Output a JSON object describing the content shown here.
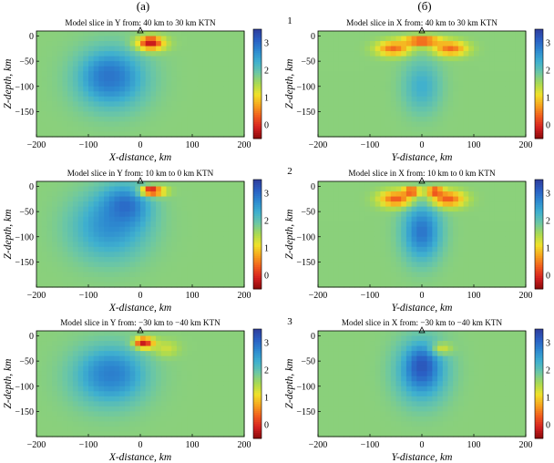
{
  "column_labels": [
    "(a)",
    "(б)"
  ],
  "row_labels": [
    "1",
    "2",
    "3"
  ],
  "colorbar": {
    "ticks": [
      "3",
      "2",
      "1",
      "0"
    ],
    "colors": [
      "#8a0a0a",
      "#d42020",
      "#f05a1e",
      "#f7a21e",
      "#f0e22a",
      "#a9da52",
      "#6cc7a4",
      "#3fb0cf",
      "#2d8ad0",
      "#2a5fc4",
      "#2f3c9a"
    ]
  },
  "chart_data": [
    {
      "type": "heatmap",
      "title": "Model slice in Y from: 40 km to 30 km KTN",
      "xlabel": "X-distance, km",
      "ylabel": "Z-depth, km",
      "xlim": [
        -200,
        200
      ],
      "ylim": [
        -200,
        10
      ],
      "x_ticks": [
        "−200",
        "−100",
        "0",
        "100",
        "200"
      ],
      "y_ticks": [
        "0",
        "−50",
        "−100",
        "−150"
      ],
      "value_range": [
        -0.5,
        3.5
      ],
      "background_value": 1.7,
      "anomalies": [
        {
          "x": -55,
          "z": -85,
          "rx": 85,
          "rz": 75,
          "value": 2.6
        },
        {
          "x": -60,
          "z": -80,
          "rx": 50,
          "rz": 45,
          "value": 2.9
        },
        {
          "x": 20,
          "z": -15,
          "rx": 35,
          "rz": 18,
          "value": 0.3
        },
        {
          "x": 20,
          "z": -12,
          "rx": 18,
          "rz": 10,
          "value": -0.3
        }
      ]
    },
    {
      "type": "heatmap",
      "title": "Model slice in X from: 40 km to 30 km KTN",
      "xlabel": "Y-distance, km",
      "ylabel": "Z-depth, km",
      "xlim": [
        -200,
        200
      ],
      "ylim": [
        -200,
        10
      ],
      "x_ticks": [
        "−200",
        "−100",
        "0",
        "100",
        "200"
      ],
      "y_ticks": [
        "0",
        "−50",
        "−100",
        "−150"
      ],
      "value_range": [
        -0.5,
        3.5
      ],
      "background_value": 1.7,
      "anomalies": [
        {
          "x": 0,
          "z": -100,
          "rx": 45,
          "rz": 65,
          "value": 2.3
        },
        {
          "x": -55,
          "z": -25,
          "rx": 40,
          "rz": 18,
          "value": 0.4
        },
        {
          "x": 55,
          "z": -25,
          "rx": 40,
          "rz": 18,
          "value": 0.4
        },
        {
          "x": 0,
          "z": -10,
          "rx": 45,
          "rz": 12,
          "value": 0.0
        }
      ]
    },
    {
      "type": "heatmap",
      "title": "Model slice in Y from: 10 km to 0 km KTN",
      "xlabel": "X-distance, km",
      "ylabel": "Z-depth, km",
      "xlim": [
        -200,
        200
      ],
      "ylim": [
        -200,
        10
      ],
      "x_ticks": [
        "−200",
        "−100",
        "0",
        "100",
        "200"
      ],
      "y_ticks": [
        "0",
        "−50",
        "−100",
        "−150"
      ],
      "value_range": [
        -0.5,
        3.5
      ],
      "background_value": 1.7,
      "anomalies": [
        {
          "x": -60,
          "z": -80,
          "rx": 90,
          "rz": 80,
          "value": 2.6
        },
        {
          "x": -30,
          "z": -40,
          "rx": 55,
          "rz": 50,
          "value": 3.0
        },
        {
          "x": 25,
          "z": -10,
          "rx": 30,
          "rz": 12,
          "value": 0.2
        },
        {
          "x": 20,
          "z": -8,
          "rx": 15,
          "rz": 7,
          "value": -0.3
        }
      ]
    },
    {
      "type": "heatmap",
      "title": "Model slice in X from: 10 km to 0 km KTN",
      "xlabel": "Y-distance, km",
      "ylabel": "Z-depth, km",
      "xlim": [
        -200,
        200
      ],
      "ylim": [
        -200,
        10
      ],
      "x_ticks": [
        "−200",
        "−100",
        "0",
        "100",
        "200"
      ],
      "y_ticks": [
        "0",
        "−50",
        "−100",
        "−150"
      ],
      "value_range": [
        -0.5,
        3.5
      ],
      "background_value": 1.7,
      "anomalies": [
        {
          "x": 0,
          "z": -90,
          "rx": 45,
          "rz": 70,
          "value": 2.9
        },
        {
          "x": -50,
          "z": -25,
          "rx": 40,
          "rz": 20,
          "value": 0.3
        },
        {
          "x": 50,
          "z": -25,
          "rx": 40,
          "rz": 20,
          "value": 0.3
        },
        {
          "x": -20,
          "z": -10,
          "rx": 20,
          "rz": 10,
          "value": -0.2
        },
        {
          "x": 25,
          "z": -10,
          "rx": 20,
          "rz": 10,
          "value": -0.2
        }
      ]
    },
    {
      "type": "heatmap",
      "title": "Model slice in Y from: −30 km to −40 km KTN",
      "xlabel": "X-distance, km",
      "ylabel": "Z-depth, km",
      "xlim": [
        -200,
        200
      ],
      "ylim": [
        -200,
        10
      ],
      "x_ticks": [
        "−200",
        "−100",
        "0",
        "100",
        "200"
      ],
      "y_ticks": [
        "0",
        "−50",
        "−100",
        "−150"
      ],
      "value_range": [
        -0.5,
        3.5
      ],
      "background_value": 1.7,
      "anomalies": [
        {
          "x": -60,
          "z": -80,
          "rx": 90,
          "rz": 75,
          "value": 2.5
        },
        {
          "x": -55,
          "z": -75,
          "rx": 55,
          "rz": 45,
          "value": 2.8
        },
        {
          "x": 10,
          "z": -15,
          "rx": 25,
          "rz": 14,
          "value": 0.2
        },
        {
          "x": 5,
          "z": -12,
          "rx": 15,
          "rz": 8,
          "value": -0.3
        },
        {
          "x": 50,
          "z": -25,
          "rx": 30,
          "rz": 20,
          "value": 1.3
        }
      ]
    },
    {
      "type": "heatmap",
      "title": "Model slice in X from: −30 km to −40 km KTN",
      "xlabel": "Y-distance, km",
      "ylabel": "Z-depth, km",
      "xlim": [
        -200,
        200
      ],
      "ylim": [
        -200,
        10
      ],
      "x_ticks": [
        "−200",
        "−100",
        "0",
        "100",
        "200"
      ],
      "y_ticks": [
        "0",
        "−50",
        "−100",
        "−150"
      ],
      "value_range": [
        -0.5,
        3.5
      ],
      "background_value": 1.7,
      "anomalies": [
        {
          "x": 0,
          "z": -70,
          "rx": 60,
          "rz": 75,
          "value": 2.8
        },
        {
          "x": 0,
          "z": -60,
          "rx": 30,
          "rz": 40,
          "value": 3.2
        },
        {
          "x": 40,
          "z": -25,
          "rx": 25,
          "rz": 15,
          "value": 1.3
        }
      ]
    }
  ]
}
